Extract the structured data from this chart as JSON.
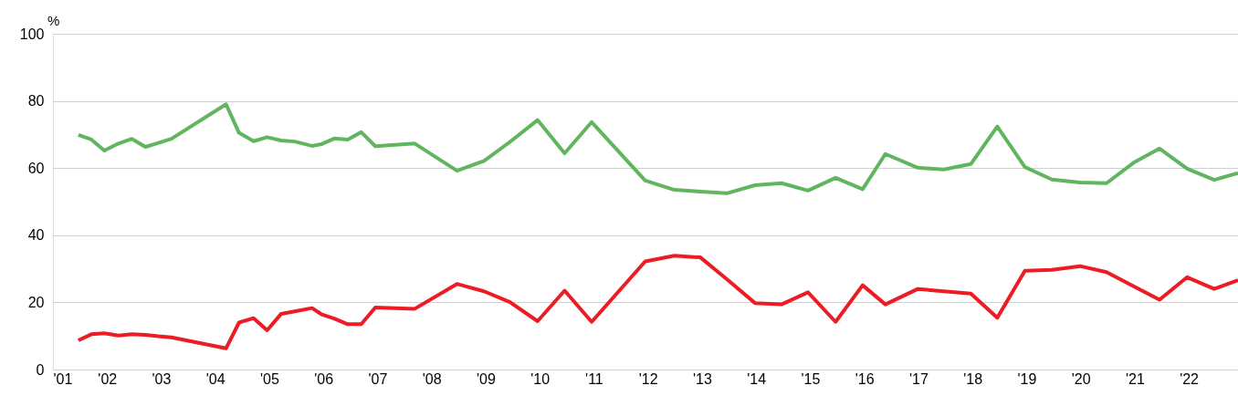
{
  "chart_data": {
    "type": "line",
    "ylabel": "%",
    "x": [
      2001.47,
      2001.71,
      2001.95,
      2002.21,
      2002.46,
      2002.71,
      2002.95,
      2003.19,
      2004.2,
      2004.44,
      2004.71,
      2004.96,
      2005.22,
      2005.47,
      2005.79,
      2005.96,
      2006.2,
      2006.45,
      2006.7,
      2006.96,
      2007.69,
      2008.47,
      2008.97,
      2009.45,
      2009.96,
      2010.46,
      2010.96,
      2011.95,
      2012.49,
      2012.97,
      2013.46,
      2013.98,
      2014.47,
      2014.96,
      2015.47,
      2015.97,
      2016.39,
      2016.99,
      2017.47,
      2017.97,
      2018.46,
      2018.97,
      2019.47,
      2019.99,
      2020.48,
      2020.98,
      2021.46,
      2021.97,
      2022.47,
      2022.91
    ],
    "series": [
      {
        "color": "#62b55f",
        "values": [
          69.9,
          68.5,
          65.2,
          67.3,
          68.7,
          66.3,
          67.5,
          68.7,
          79.0,
          70.5,
          68.0,
          69.2,
          68.2,
          67.9,
          66.6,
          67.1,
          68.8,
          68.5,
          70.7,
          66.5,
          67.3,
          59.2,
          62.1,
          67.8,
          74.3,
          64.4,
          73.7,
          56.3,
          53.5,
          53.0,
          52.5,
          54.9,
          55.5,
          53.3,
          57.1,
          53.7,
          64.2,
          60.1,
          59.6,
          61.2,
          72.4,
          60.3,
          56.6,
          55.7,
          55.5,
          61.6,
          65.8,
          59.8,
          56.5,
          58.5
        ]
      },
      {
        "color": "#ed1c24",
        "values": [
          8.7,
          10.5,
          10.8,
          10.1,
          10.5,
          10.3,
          9.9,
          9.6,
          6.3,
          14.0,
          15.3,
          11.7,
          16.6,
          17.3,
          18.3,
          16.5,
          15.2,
          13.5,
          13.5,
          18.5,
          18.1,
          25.5,
          23.3,
          20.1,
          14.4,
          23.5,
          14.2,
          32.2,
          33.9,
          33.4,
          26.9,
          19.8,
          19.4,
          23.0,
          14.2,
          25.1,
          19.4,
          24.0,
          23.3,
          22.6,
          15.4,
          29.4,
          29.7,
          30.8,
          29.0,
          24.8,
          20.8,
          27.5,
          24.0,
          26.6
        ]
      }
    ],
    "xlim": [
      2001,
      2022.91
    ],
    "xticks": [
      {
        "value": 2001,
        "label": "'01"
      },
      {
        "value": 2002,
        "label": "'02"
      },
      {
        "value": 2003,
        "label": "'03"
      },
      {
        "value": 2004,
        "label": "'04"
      },
      {
        "value": 2005,
        "label": "'05"
      },
      {
        "value": 2006,
        "label": "'06"
      },
      {
        "value": 2007,
        "label": "'07"
      },
      {
        "value": 2008,
        "label": "'08"
      },
      {
        "value": 2009,
        "label": "'09"
      },
      {
        "value": 2010,
        "label": "'10"
      },
      {
        "value": 2011,
        "label": "'11"
      },
      {
        "value": 2012,
        "label": "'12"
      },
      {
        "value": 2013,
        "label": "'13"
      },
      {
        "value": 2014,
        "label": "'14"
      },
      {
        "value": 2015,
        "label": "'15"
      },
      {
        "value": 2016,
        "label": "'16"
      },
      {
        "value": 2017,
        "label": "'17"
      },
      {
        "value": 2018,
        "label": "'18"
      },
      {
        "value": 2019,
        "label": "'19"
      },
      {
        "value": 2020,
        "label": "'20"
      },
      {
        "value": 2021,
        "label": "'21"
      },
      {
        "value": 2022,
        "label": "'22"
      }
    ],
    "ylim": [
      0,
      100
    ],
    "yticks": [
      0,
      20,
      40,
      60,
      80,
      100
    ],
    "grid": "y",
    "marker": "none",
    "line_style": "solid"
  }
}
